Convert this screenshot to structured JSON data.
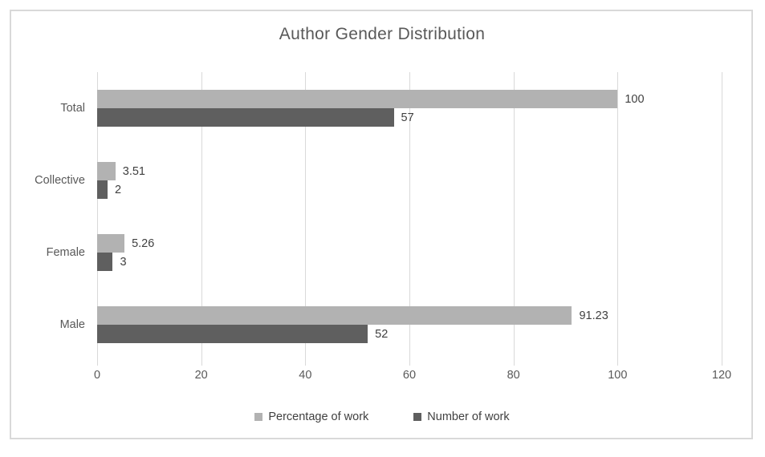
{
  "title": "Author Gender Distribution",
  "chart_data": {
    "type": "bar",
    "orientation": "horizontal",
    "title": "Author Gender Distribution",
    "categories": [
      "Total",
      "Collective",
      "Female",
      "Male"
    ],
    "series": [
      {
        "name": "Percentage of work",
        "color": "#b2b2b2",
        "values": [
          100,
          3.51,
          5.26,
          91.23
        ]
      },
      {
        "name": "Number of work",
        "color": "#5f5f5f",
        "values": [
          57,
          2,
          3,
          52
        ]
      }
    ],
    "xlim": [
      0,
      120
    ],
    "xticks": [
      0,
      20,
      40,
      60,
      80,
      100,
      120
    ],
    "grid": true,
    "data_labels": true,
    "legend_position": "bottom"
  },
  "colors": {
    "grid": "#d9d9d9",
    "frame_border": "#d9d9d9",
    "title_text": "#595959",
    "axis_text": "#595959",
    "data_label_text": "#404040"
  }
}
